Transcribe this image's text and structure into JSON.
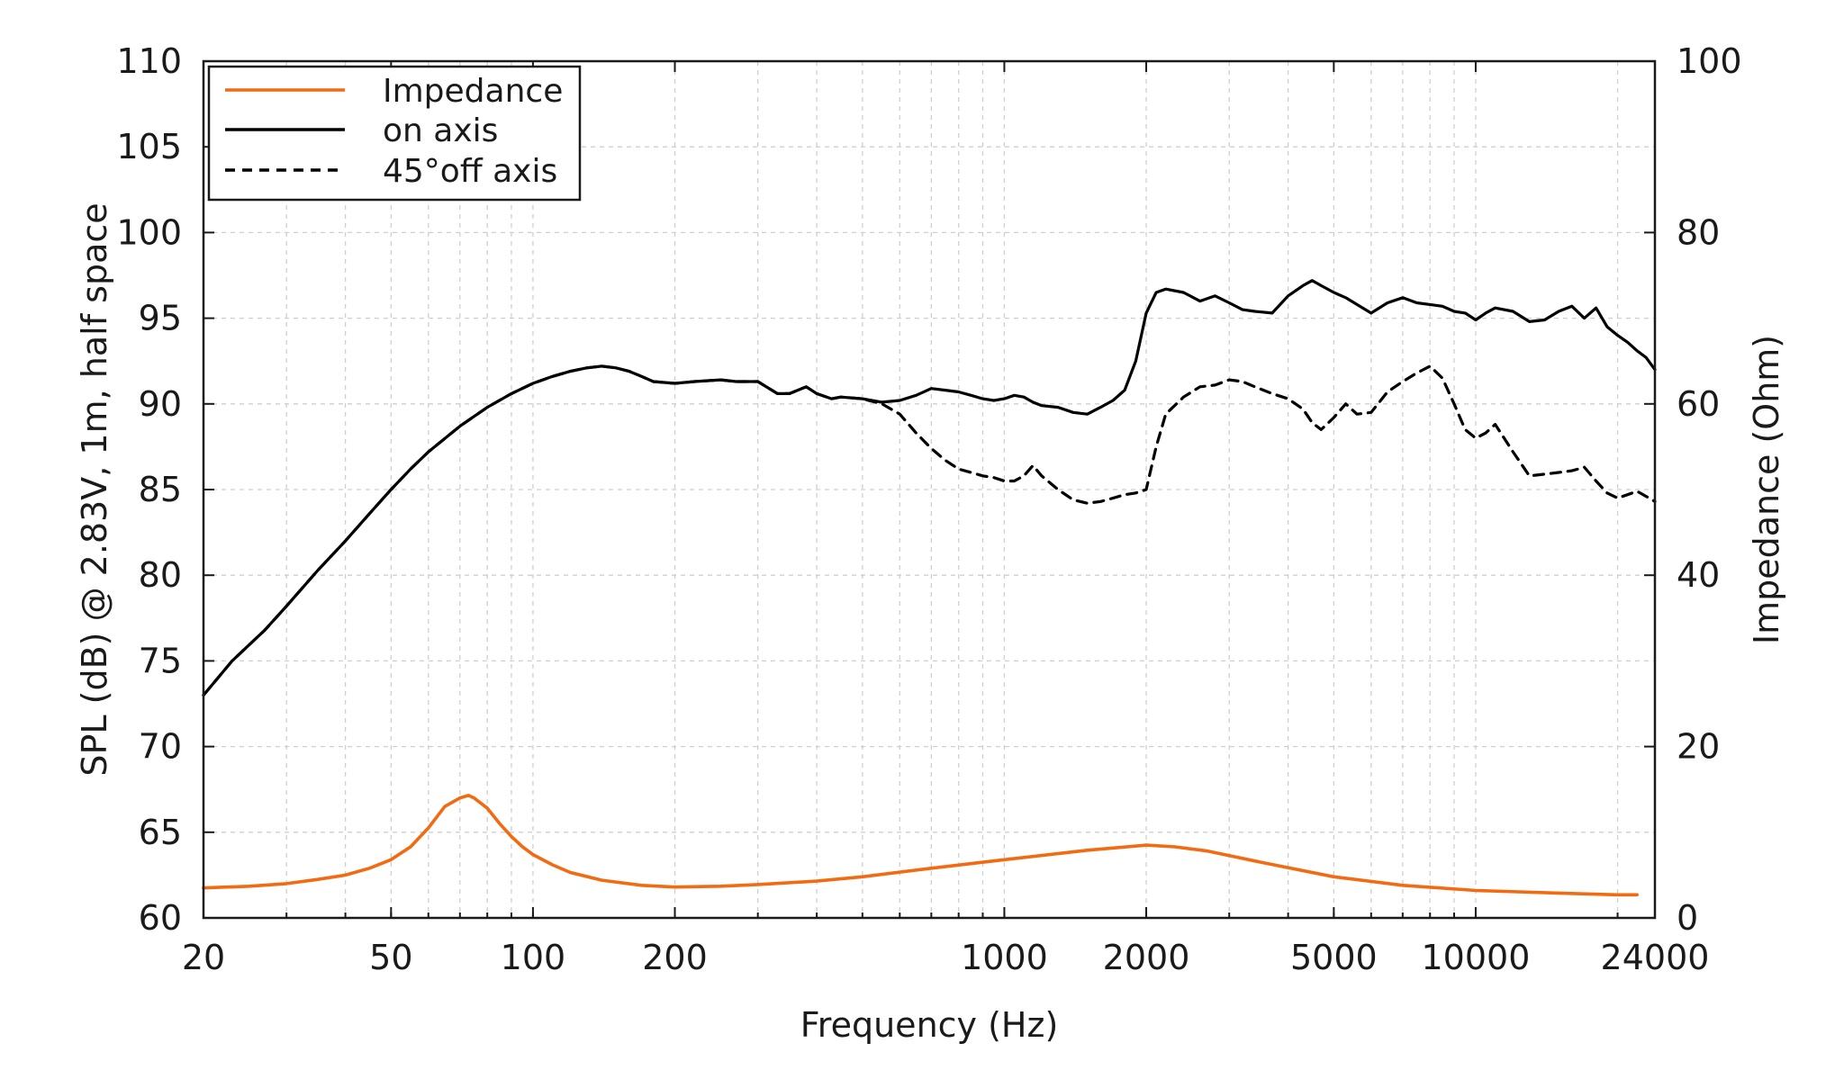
{
  "chart_data": {
    "type": "line",
    "title": "",
    "xlabel": "Frequency (Hz)",
    "ylabel": "SPL (dB) @ 2.83V, 1m, half space",
    "y2label": "Impedance (Ohm)",
    "x_scale": "log",
    "xlim": [
      20,
      24000
    ],
    "ylim": [
      60,
      110
    ],
    "y2lim": [
      0,
      100
    ],
    "x_ticks": [
      20,
      50,
      100,
      200,
      1000,
      2000,
      5000,
      10000,
      24000
    ],
    "x_tick_labels": [
      "20",
      "50",
      "100",
      "200",
      "1000",
      "2000",
      "5000",
      "10000",
      "24000"
    ],
    "y_ticks": [
      60,
      65,
      70,
      75,
      80,
      85,
      90,
      95,
      100,
      105,
      110
    ],
    "y_tick_labels": [
      "60",
      "65",
      "70",
      "75",
      "80",
      "85",
      "90",
      "95",
      "100",
      "105",
      "110"
    ],
    "y2_ticks": [
      0,
      20,
      40,
      60,
      80,
      100
    ],
    "y2_tick_labels": [
      "0",
      "20",
      "40",
      "60",
      "80",
      "100"
    ],
    "grid": true,
    "legend_position": "top-left",
    "series": [
      {
        "name": "Impedance",
        "axis": "right",
        "color": "#f26a11",
        "style": "solid",
        "x": [
          20,
          25,
          30,
          35,
          40,
          45,
          50,
          55,
          60,
          65,
          70,
          73,
          75,
          80,
          85,
          90,
          95,
          100,
          110,
          120,
          140,
          170,
          200,
          250,
          300,
          400,
          500,
          700,
          1000,
          1500,
          2000,
          2300,
          2700,
          3500,
          5000,
          7000,
          10000,
          15000,
          20000,
          22000
        ],
        "y": [
          3.5,
          3.7,
          4.0,
          4.5,
          5.0,
          5.8,
          6.8,
          8.3,
          10.5,
          13.0,
          14.0,
          14.3,
          14.0,
          12.8,
          11.0,
          9.5,
          8.3,
          7.4,
          6.2,
          5.3,
          4.4,
          3.8,
          3.6,
          3.7,
          3.9,
          4.3,
          4.8,
          5.8,
          6.8,
          7.9,
          8.5,
          8.3,
          7.8,
          6.5,
          4.8,
          3.8,
          3.2,
          2.9,
          2.7,
          2.7
        ]
      },
      {
        "name": "on axis",
        "axis": "left",
        "color": "#000000",
        "style": "solid",
        "x": [
          20,
          23,
          27,
          30,
          35,
          40,
          45,
          50,
          55,
          60,
          70,
          80,
          90,
          100,
          110,
          120,
          130,
          140,
          150,
          160,
          170,
          180,
          200,
          220,
          250,
          270,
          300,
          330,
          350,
          380,
          400,
          430,
          450,
          500,
          550,
          600,
          650,
          700,
          750,
          800,
          850,
          900,
          950,
          1000,
          1050,
          1100,
          1150,
          1200,
          1300,
          1400,
          1500,
          1600,
          1700,
          1800,
          1900,
          2000,
          2100,
          2200,
          2400,
          2600,
          2800,
          3000,
          3200,
          3400,
          3700,
          4000,
          4300,
          4500,
          4700,
          5000,
          5300,
          5600,
          6000,
          6500,
          7000,
          7500,
          8000,
          8500,
          9000,
          9500,
          10000,
          10500,
          11000,
          12000,
          13000,
          14000,
          15000,
          16000,
          17000,
          18000,
          19000,
          20000,
          21000,
          22000,
          23000,
          24000
        ],
        "y": [
          73.0,
          75.0,
          76.8,
          78.2,
          80.3,
          82.0,
          83.6,
          85.0,
          86.2,
          87.2,
          88.7,
          89.8,
          90.6,
          91.2,
          91.6,
          91.9,
          92.1,
          92.2,
          92.1,
          91.9,
          91.6,
          91.3,
          91.2,
          91.3,
          91.4,
          91.3,
          91.3,
          90.6,
          90.6,
          91.0,
          90.6,
          90.3,
          90.4,
          90.3,
          90.1,
          90.2,
          90.5,
          90.9,
          90.8,
          90.7,
          90.5,
          90.3,
          90.2,
          90.3,
          90.5,
          90.4,
          90.1,
          89.9,
          89.8,
          89.5,
          89.4,
          89.8,
          90.2,
          90.8,
          92.5,
          95.3,
          96.5,
          96.7,
          96.5,
          96.0,
          96.3,
          95.9,
          95.5,
          95.4,
          95.3,
          96.3,
          96.9,
          97.2,
          96.9,
          96.5,
          96.2,
          95.8,
          95.3,
          95.9,
          96.2,
          95.9,
          95.8,
          95.7,
          95.4,
          95.3,
          94.9,
          95.3,
          95.6,
          95.4,
          94.8,
          94.9,
          95.4,
          95.7,
          95.0,
          95.6,
          94.5,
          94.0,
          93.6,
          93.1,
          92.7,
          92.0
        ]
      },
      {
        "name": "45°off axis",
        "axis": "left",
        "color": "#000000",
        "style": "dashed",
        "x": [
          20,
          23,
          27,
          30,
          35,
          40,
          45,
          50,
          55,
          60,
          70,
          80,
          90,
          100,
          110,
          120,
          130,
          140,
          150,
          160,
          170,
          180,
          200,
          220,
          250,
          270,
          300,
          330,
          350,
          380,
          400,
          430,
          450,
          500,
          550,
          600,
          650,
          700,
          750,
          800,
          850,
          900,
          950,
          1000,
          1050,
          1100,
          1150,
          1200,
          1300,
          1400,
          1500,
          1600,
          1700,
          1800,
          1900,
          2000,
          2100,
          2200,
          2400,
          2600,
          2800,
          3000,
          3200,
          3400,
          3700,
          4000,
          4300,
          4500,
          4700,
          5000,
          5300,
          5600,
          6000,
          6500,
          7000,
          7500,
          8000,
          8500,
          9000,
          9500,
          10000,
          10500,
          11000,
          12000,
          13000,
          14000,
          15000,
          16000,
          17000,
          18000,
          19000,
          20000,
          21000,
          22000,
          23000,
          24000
        ],
        "y": [
          73.0,
          75.0,
          76.8,
          78.2,
          80.3,
          82.0,
          83.6,
          85.0,
          86.2,
          87.2,
          88.7,
          89.8,
          90.6,
          91.2,
          91.6,
          91.9,
          92.1,
          92.2,
          92.1,
          91.9,
          91.6,
          91.3,
          91.2,
          91.3,
          91.4,
          91.3,
          91.3,
          90.6,
          90.6,
          91.0,
          90.6,
          90.3,
          90.4,
          90.3,
          90.0,
          89.4,
          88.3,
          87.4,
          86.7,
          86.2,
          86.0,
          85.8,
          85.7,
          85.5,
          85.5,
          85.8,
          86.4,
          85.8,
          85.0,
          84.4,
          84.2,
          84.3,
          84.5,
          84.7,
          84.8,
          85.0,
          87.5,
          89.4,
          90.4,
          91.0,
          91.1,
          91.4,
          91.3,
          91.0,
          90.6,
          90.3,
          89.7,
          88.9,
          88.5,
          89.2,
          90.0,
          89.4,
          89.5,
          90.7,
          91.3,
          91.8,
          92.2,
          91.5,
          90.0,
          88.5,
          88.0,
          88.3,
          88.8,
          87.2,
          85.8,
          85.9,
          86.0,
          86.1,
          86.3,
          85.5,
          84.8,
          84.5,
          84.7,
          84.9,
          84.6,
          84.3
        ]
      }
    ]
  }
}
